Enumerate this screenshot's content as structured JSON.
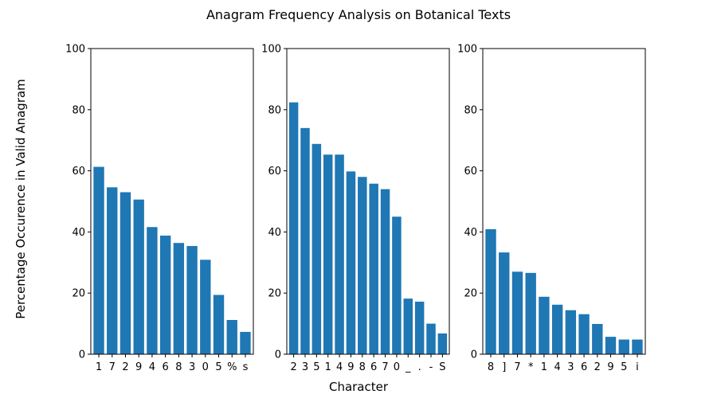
{
  "figure": {
    "title": "Anagram Frequency Analysis on Botanical Texts",
    "xlabel": "Character",
    "ylabel": "Percentage Occurence in Valid Anagram",
    "bar_color": "#1f77b4"
  },
  "chart_data": [
    {
      "type": "bar",
      "categories": [
        "1",
        "7",
        "2",
        "9",
        "4",
        "6",
        "8",
        "3",
        "0",
        "5",
        "%",
        "s"
      ],
      "values": [
        61.3,
        54.6,
        53.0,
        50.6,
        41.6,
        38.8,
        36.4,
        35.4,
        30.9,
        19.4,
        11.2,
        7.3
      ],
      "ylim": [
        0,
        100
      ],
      "yticks": [
        0,
        20,
        40,
        60,
        80,
        100
      ],
      "grid": false
    },
    {
      "type": "bar",
      "categories": [
        "2",
        "3",
        "5",
        "1",
        "4",
        "9",
        "8",
        "6",
        "7",
        "0",
        "_",
        ".",
        "-",
        "S"
      ],
      "values": [
        82.4,
        74.0,
        68.8,
        65.3,
        65.3,
        59.8,
        58.0,
        55.8,
        54.0,
        45.0,
        18.2,
        17.2,
        10.0,
        6.8
      ],
      "ylim": [
        0,
        100
      ],
      "yticks": [
        0,
        20,
        40,
        60,
        80,
        100
      ],
      "grid": false
    },
    {
      "type": "bar",
      "categories": [
        "8",
        "]",
        "7",
        "*",
        "1",
        "4",
        "3",
        "6",
        "2",
        "9",
        "5",
        "i"
      ],
      "values": [
        40.9,
        33.3,
        27.0,
        26.6,
        18.8,
        16.2,
        14.4,
        13.1,
        9.9,
        5.7,
        4.8,
        4.8
      ],
      "ylim": [
        0,
        100
      ],
      "yticks": [
        0,
        20,
        40,
        60,
        80,
        100
      ],
      "grid": false
    }
  ]
}
